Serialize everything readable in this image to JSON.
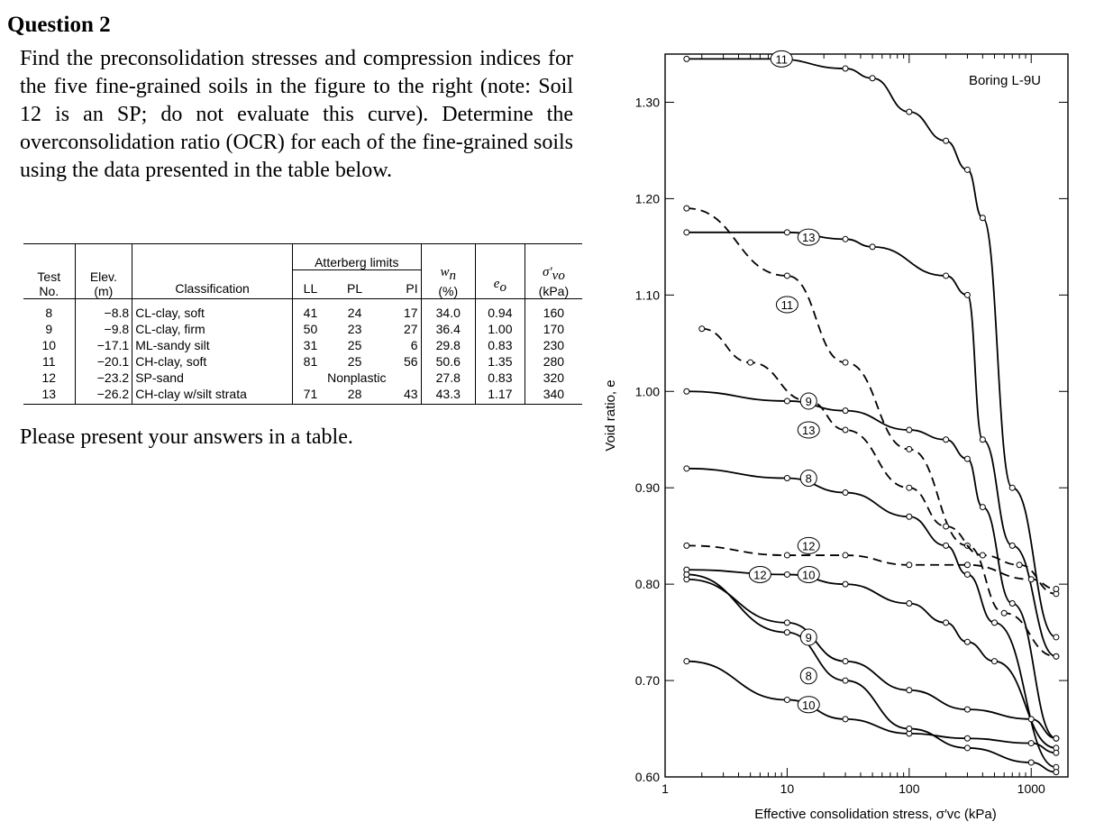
{
  "question": {
    "title": "Question 2",
    "body": "Find the preconsolidation stresses and compression indices for the five fine-grained soils in the figure to the right (note: Soil 12 is an SP; do not evaluate this curve). Determine the overconsolidation ratio (OCR) for each of the fine-grained soils using the data presented in the table below.",
    "footer": "Please present your answers in a table."
  },
  "table": {
    "headers": {
      "test_no": [
        "Test",
        "No."
      ],
      "elev": [
        "Elev.",
        "(m)"
      ],
      "classification": "Classification",
      "atterberg": "Atterberg limits",
      "ll": "LL",
      "pl": "PL",
      "pi": "PI",
      "wn_symbol": "w",
      "wn_sub": "n",
      "wn_unit": "(%)",
      "eo_symbol": "e",
      "eo_sub": "o",
      "sigma_symbol": "σ′",
      "sigma_sub": "vo",
      "sigma_unit": "(kPa)"
    },
    "rows": [
      {
        "test": "8",
        "elev": "−8.8",
        "cls": "CL-clay, soft",
        "ll": "41",
        "pl": "24",
        "pi": "17",
        "wn": "34.0",
        "eo": "0.94",
        "sigma": "160"
      },
      {
        "test": "9",
        "elev": "−9.8",
        "cls": "CL-clay, firm",
        "ll": "50",
        "pl": "23",
        "pi": "27",
        "wn": "36.4",
        "eo": "1.00",
        "sigma": "170"
      },
      {
        "test": "10",
        "elev": "−17.1",
        "cls": "ML-sandy silt",
        "ll": "31",
        "pl": "25",
        "pi": "6",
        "wn": "29.8",
        "eo": "0.83",
        "sigma": "230"
      },
      {
        "test": "11",
        "elev": "−20.1",
        "cls": "CH-clay, soft",
        "ll": "81",
        "pl": "25",
        "pi": "56",
        "wn": "50.6",
        "eo": "1.35",
        "sigma": "280"
      },
      {
        "test": "12",
        "elev": "−23.2",
        "cls": "SP-sand",
        "ll": "",
        "pl": "Nonplastic",
        "pi": "",
        "wn": "27.8",
        "eo": "0.83",
        "sigma": "320"
      },
      {
        "test": "13",
        "elev": "−26.2",
        "cls": "CH-clay w/silt strata",
        "ll": "71",
        "pl": "28",
        "pi": "43",
        "wn": "43.3",
        "eo": "1.17",
        "sigma": "340"
      }
    ]
  },
  "chart_data": {
    "type": "line",
    "title": "Boring L-9U",
    "xlabel": "Effective consolidation stress, σ′vc (kPa)",
    "ylabel": "Void ratio, e",
    "xscale": "log",
    "xlim": [
      1,
      2000
    ],
    "ylim": [
      0.6,
      1.35
    ],
    "x_ticks": [
      "1",
      "10",
      "100",
      "1000"
    ],
    "y_ticks": [
      "0.60",
      "0.70",
      "0.80",
      "0.90",
      "1.00",
      "1.10",
      "1.20",
      "1.30"
    ],
    "series": [
      {
        "name": "11",
        "style": "solid",
        "x": [
          1.5,
          8,
          30,
          50,
          100,
          200,
          300,
          400,
          700,
          1600
        ],
        "y": [
          1.345,
          1.345,
          1.335,
          1.325,
          1.29,
          1.26,
          1.23,
          1.18,
          0.9,
          0.745
        ]
      },
      {
        "name": "11-unload",
        "style": "dashed",
        "x": [
          1.5,
          10,
          30,
          100,
          300,
          600,
          1600
        ],
        "y": [
          1.19,
          1.12,
          1.03,
          0.94,
          0.84,
          0.77,
          0.725
        ]
      },
      {
        "name": "13",
        "style": "solid",
        "x": [
          1.5,
          10,
          30,
          50,
          200,
          300,
          400,
          700,
          1600
        ],
        "y": [
          1.165,
          1.165,
          1.158,
          1.15,
          1.12,
          1.1,
          0.95,
          0.84,
          0.725
        ]
      },
      {
        "name": "13-unload",
        "style": "dashed",
        "x": [
          2,
          5,
          15,
          30,
          100,
          200,
          400,
          800,
          1600
        ],
        "y": [
          1.065,
          1.03,
          0.99,
          0.96,
          0.9,
          0.86,
          0.83,
          0.82,
          0.79
        ]
      },
      {
        "name": "9",
        "style": "solid",
        "x": [
          1.5,
          10,
          30,
          100,
          200,
          300,
          400,
          700,
          1600
        ],
        "y": [
          1.0,
          0.99,
          0.98,
          0.96,
          0.95,
          0.93,
          0.88,
          0.78,
          0.64
        ]
      },
      {
        "name": "8",
        "style": "solid",
        "x": [
          1.5,
          10,
          30,
          100,
          200,
          300,
          500,
          1600
        ],
        "y": [
          0.92,
          0.91,
          0.895,
          0.87,
          0.84,
          0.81,
          0.76,
          0.61
        ]
      },
      {
        "name": "12",
        "style": "dashed",
        "x": [
          1.5,
          10,
          30,
          100,
          300,
          1000,
          1600
        ],
        "y": [
          0.84,
          0.83,
          0.83,
          0.82,
          0.82,
          0.805,
          0.795
        ]
      },
      {
        "name": "10",
        "style": "solid",
        "x": [
          1.5,
          10,
          30,
          100,
          200,
          300,
          500,
          1600
        ],
        "y": [
          0.815,
          0.81,
          0.8,
          0.78,
          0.76,
          0.74,
          0.72,
          0.63
        ]
      },
      {
        "name": "9-reload",
        "style": "solid",
        "x": [
          1.5,
          10,
          30,
          100,
          300,
          1000,
          1600
        ],
        "y": [
          0.805,
          0.76,
          0.72,
          0.69,
          0.67,
          0.66,
          0.64
        ]
      },
      {
        "name": "8-reload",
        "style": "solid",
        "x": [
          1.5,
          10,
          30,
          100,
          300,
          1000,
          1600
        ],
        "y": [
          0.72,
          0.68,
          0.66,
          0.645,
          0.64,
          0.635,
          0.625
        ]
      },
      {
        "name": "10-reload",
        "style": "solid",
        "x": [
          1.5,
          10,
          30,
          100,
          300,
          1000,
          1600
        ],
        "y": [
          0.81,
          0.75,
          0.7,
          0.65,
          0.63,
          0.615,
          0.605
        ]
      }
    ],
    "curve_labels": [
      {
        "text": "11",
        "x": 9,
        "y": 1.345
      },
      {
        "text": "13",
        "x": 15,
        "y": 1.16
      },
      {
        "text": "11",
        "x": 10,
        "y": 1.09
      },
      {
        "text": "9",
        "x": 15,
        "y": 0.99
      },
      {
        "text": "13",
        "x": 15,
        "y": 0.96
      },
      {
        "text": "8",
        "x": 15,
        "y": 0.91
      },
      {
        "text": "12",
        "x": 15,
        "y": 0.84
      },
      {
        "text": "12",
        "x": 6,
        "y": 0.81
      },
      {
        "text": "10",
        "x": 15,
        "y": 0.81
      },
      {
        "text": "9",
        "x": 15,
        "y": 0.745
      },
      {
        "text": "8",
        "x": 15,
        "y": 0.705
      },
      {
        "text": "10",
        "x": 15,
        "y": 0.675
      }
    ]
  }
}
